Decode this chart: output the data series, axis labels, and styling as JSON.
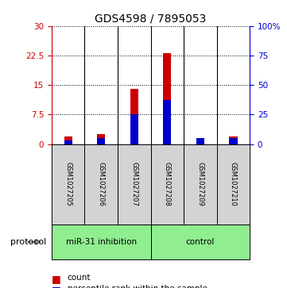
{
  "title": "GDS4598 / 7895053",
  "samples": [
    "GSM1027205",
    "GSM1027206",
    "GSM1027207",
    "GSM1027208",
    "GSM1027209",
    "GSM1027210"
  ],
  "count_values": [
    2.0,
    2.5,
    14.0,
    23.0,
    1.2,
    2.0
  ],
  "percentile_values": [
    3.3,
    5.0,
    25.0,
    37.0,
    5.0,
    5.0
  ],
  "ylim_left": [
    0,
    30
  ],
  "ylim_right": [
    0,
    100
  ],
  "yticks_left": [
    0,
    7.5,
    15,
    22.5,
    30
  ],
  "yticks_right": [
    0,
    25,
    50,
    75,
    100
  ],
  "ytick_labels_left": [
    "0",
    "7.5",
    "15",
    "22.5",
    "30"
  ],
  "ytick_labels_right": [
    "0",
    "25",
    "50",
    "75",
    "100%"
  ],
  "left_axis_color": "#cc0000",
  "right_axis_color": "#0000cc",
  "bar_color_count": "#cc0000",
  "bar_color_percentile": "#0000cc",
  "protocol_groups": [
    {
      "label": "miR-31 inhibition",
      "indices": [
        0,
        1,
        2
      ],
      "color": "#90ee90"
    },
    {
      "label": "control",
      "indices": [
        3,
        4,
        5
      ],
      "color": "#90ee90"
    }
  ],
  "protocol_label": "protocol",
  "background_color": "#ffffff",
  "sample_box_color": "#d3d3d3",
  "bar_width": 0.25,
  "title_fontsize": 10
}
